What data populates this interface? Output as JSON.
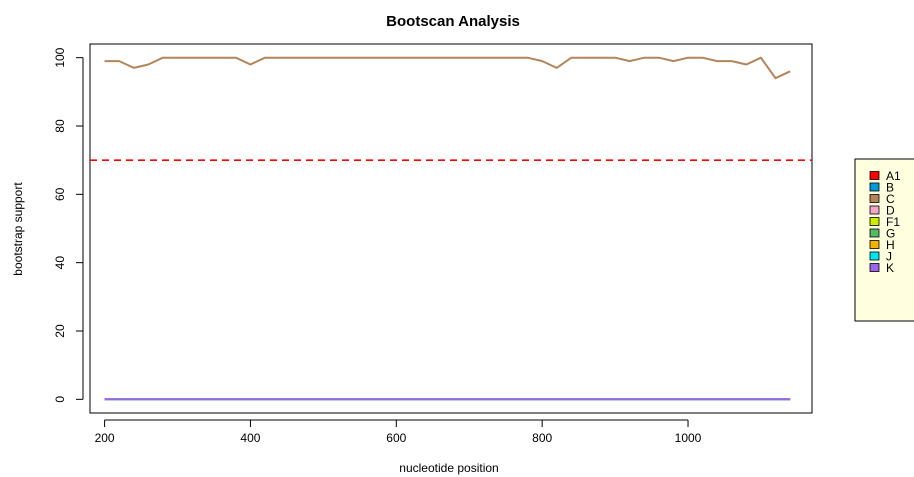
{
  "chart_data": {
    "type": "line",
    "title": "Bootscan Analysis",
    "xlabel": "nucleotide position",
    "ylabel": "bootstrap support",
    "xlim": [
      180,
      1170
    ],
    "ylim": [
      -4,
      104
    ],
    "xticks": [
      200,
      400,
      600,
      800,
      1000
    ],
    "yticks": [
      0,
      20,
      40,
      60,
      80,
      100
    ],
    "threshold": {
      "value": 70,
      "color": "#ff0000",
      "style": "dashed"
    },
    "x": [
      200,
      220,
      240,
      260,
      280,
      300,
      320,
      340,
      360,
      380,
      400,
      420,
      440,
      460,
      480,
      500,
      520,
      540,
      560,
      580,
      600,
      620,
      640,
      660,
      680,
      700,
      720,
      740,
      760,
      780,
      800,
      820,
      840,
      860,
      880,
      900,
      920,
      940,
      960,
      980,
      1000,
      1020,
      1040,
      1060,
      1080,
      1100,
      1120,
      1140
    ],
    "series": [
      {
        "name": "A1",
        "color": "#ff0000",
        "values": [
          0,
          0,
          0,
          0,
          0,
          0,
          0,
          0,
          0,
          0,
          0,
          0,
          0,
          0,
          0,
          0,
          0,
          0,
          0,
          0,
          0,
          0,
          0,
          0,
          0,
          0,
          0,
          0,
          0,
          0,
          0,
          0,
          0,
          0,
          0,
          0,
          0,
          0,
          0,
          0,
          0,
          0,
          0,
          0,
          0,
          0,
          0,
          0
        ]
      },
      {
        "name": "B",
        "color": "#0099dd",
        "values": [
          0,
          0,
          0,
          0,
          0,
          0,
          0,
          0,
          0,
          0,
          0,
          0,
          0,
          0,
          0,
          0,
          0,
          0,
          0,
          0,
          0,
          0,
          0,
          0,
          0,
          0,
          0,
          0,
          0,
          0,
          0,
          0,
          0,
          0,
          0,
          0,
          0,
          0,
          0,
          0,
          0,
          0,
          0,
          0,
          0,
          0,
          0,
          0
        ]
      },
      {
        "name": "C",
        "color": "#b5845a",
        "values": [
          99,
          99,
          97,
          98,
          100,
          100,
          100,
          100,
          100,
          100,
          98,
          100,
          100,
          100,
          100,
          100,
          100,
          100,
          100,
          100,
          100,
          100,
          100,
          100,
          100,
          100,
          100,
          100,
          100,
          100,
          99,
          97,
          100,
          100,
          100,
          100,
          99,
          100,
          100,
          99,
          100,
          100,
          99,
          99,
          98,
          100,
          94,
          96
        ]
      },
      {
        "name": "D",
        "color": "#f4a6c8",
        "values": [
          0,
          0,
          0,
          0,
          0,
          0,
          0,
          0,
          0,
          0,
          0,
          0,
          0,
          0,
          0,
          0,
          0,
          0,
          0,
          0,
          0,
          0,
          0,
          0,
          0,
          0,
          0,
          0,
          0,
          0,
          0,
          0,
          0,
          0,
          0,
          0,
          0,
          0,
          0,
          0,
          0,
          0,
          0,
          0,
          0,
          0,
          0,
          0
        ]
      },
      {
        "name": "F1",
        "color": "#ccee00",
        "values": [
          0,
          0,
          0,
          0,
          0,
          0,
          0,
          0,
          0,
          0,
          0,
          0,
          0,
          0,
          0,
          0,
          0,
          0,
          0,
          0,
          0,
          0,
          0,
          0,
          0,
          0,
          0,
          0,
          0,
          0,
          0,
          0,
          0,
          0,
          0,
          0,
          0,
          0,
          0,
          0,
          0,
          0,
          0,
          0,
          0,
          0,
          0,
          0
        ]
      },
      {
        "name": "G",
        "color": "#55bb66",
        "values": [
          0,
          0,
          0,
          0,
          0,
          0,
          0,
          0,
          0,
          0,
          0,
          0,
          0,
          0,
          0,
          0,
          0,
          0,
          0,
          0,
          0,
          0,
          0,
          0,
          0,
          0,
          0,
          0,
          0,
          0,
          0,
          0,
          0,
          0,
          0,
          0,
          0,
          0,
          0,
          0,
          0,
          0,
          0,
          0,
          0,
          0,
          0,
          0
        ]
      },
      {
        "name": "H",
        "color": "#f2b400",
        "values": [
          0,
          0,
          0,
          0,
          0,
          0,
          0,
          0,
          0,
          0,
          0,
          0,
          0,
          0,
          0,
          0,
          0,
          0,
          0,
          0,
          0,
          0,
          0,
          0,
          0,
          0,
          0,
          0,
          0,
          0,
          0,
          0,
          0,
          0,
          0,
          0,
          0,
          0,
          0,
          0,
          0,
          0,
          0,
          0,
          0,
          0,
          0,
          0
        ]
      },
      {
        "name": "J",
        "color": "#00e5ee",
        "values": [
          0,
          0,
          0,
          0,
          0,
          0,
          0,
          0,
          0,
          0,
          0,
          0,
          0,
          0,
          0,
          0,
          0,
          0,
          0,
          0,
          0,
          0,
          0,
          0,
          0,
          0,
          0,
          0,
          0,
          0,
          0,
          0,
          0,
          0,
          0,
          0,
          0,
          0,
          0,
          0,
          0,
          0,
          0,
          0,
          0,
          0,
          0,
          0
        ]
      },
      {
        "name": "K",
        "color": "#9966ee",
        "values": [
          0,
          0,
          0,
          0,
          0,
          0,
          0,
          0,
          0,
          0,
          0,
          0,
          0,
          0,
          0,
          0,
          0,
          0,
          0,
          0,
          0,
          0,
          0,
          0,
          0,
          0,
          0,
          0,
          0,
          0,
          0,
          0,
          0,
          0,
          0,
          0,
          0,
          0,
          0,
          0,
          0,
          0,
          0,
          0,
          0,
          0,
          0,
          0
        ]
      }
    ],
    "legend": {
      "placement": "right",
      "background": "#ffffe0",
      "entries": [
        "A1",
        "B",
        "C",
        "D",
        "F1",
        "G",
        "H",
        "J",
        "K"
      ]
    },
    "grid": false
  }
}
